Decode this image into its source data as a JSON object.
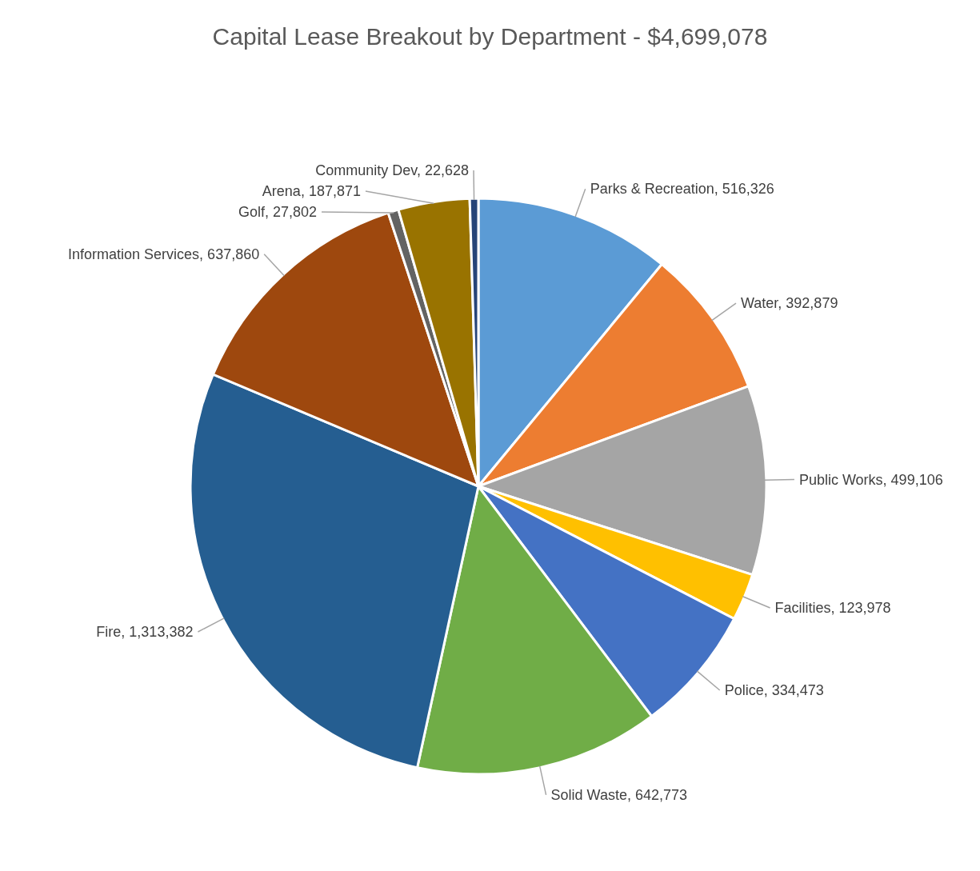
{
  "chart_data": {
    "type": "pie",
    "title": "Capital Lease Breakout by Department - $4,699,078",
    "categories": [
      "Parks & Recreation",
      "Water",
      "Public Works",
      "Facilities",
      "Police",
      "Solid Waste",
      "Fire",
      "Information Services",
      "Golf",
      "Arena",
      "Community Dev"
    ],
    "values": [
      516326,
      392879,
      499106,
      123978,
      334473,
      642773,
      1313382,
      637860,
      27802,
      187871,
      22628
    ],
    "value_labels": [
      "516,326",
      "392,879",
      "499,106",
      "123,978",
      "334,473",
      "642,773",
      "1,313,382",
      "637,860",
      "27,802",
      "187,871",
      "22,628"
    ],
    "colors": [
      "#5b9bd5",
      "#ed7d31",
      "#a5a5a5",
      "#ffc000",
      "#4472c4",
      "#70ad47",
      "#255e91",
      "#9e480e",
      "#636363",
      "#997300",
      "#264478"
    ]
  }
}
